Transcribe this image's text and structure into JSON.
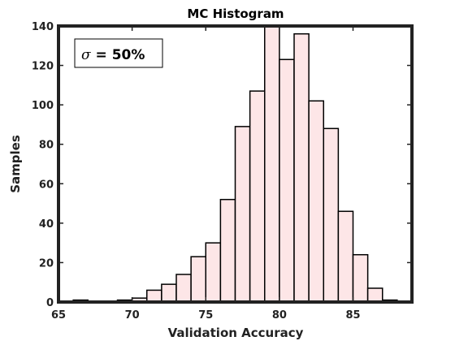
{
  "chart_data": {
    "type": "bar",
    "title": "MC Histogram",
    "xlabel": "Validation Accuracy",
    "ylabel": "Samples",
    "xlim": [
      65,
      89
    ],
    "ylim": [
      0,
      140
    ],
    "xticks": [
      65,
      70,
      75,
      80,
      85
    ],
    "yticks": [
      0,
      20,
      40,
      60,
      80,
      100,
      120,
      140
    ],
    "bin_width": 1,
    "bins": [
      {
        "x0": 66,
        "x1": 67,
        "value": 1
      },
      {
        "x0": 67,
        "x1": 68,
        "value": 0
      },
      {
        "x0": 68,
        "x1": 69,
        "value": 0
      },
      {
        "x0": 69,
        "x1": 70,
        "value": 1
      },
      {
        "x0": 70,
        "x1": 71,
        "value": 2
      },
      {
        "x0": 71,
        "x1": 72,
        "value": 6
      },
      {
        "x0": 72,
        "x1": 73,
        "value": 9
      },
      {
        "x0": 73,
        "x1": 74,
        "value": 14
      },
      {
        "x0": 74,
        "x1": 75,
        "value": 23
      },
      {
        "x0": 75,
        "x1": 76,
        "value": 30
      },
      {
        "x0": 76,
        "x1": 77,
        "value": 52
      },
      {
        "x0": 77,
        "x1": 78,
        "value": 89
      },
      {
        "x0": 78,
        "x1": 79,
        "value": 107
      },
      {
        "x0": 79,
        "x1": 80,
        "value": 140
      },
      {
        "x0": 80,
        "x1": 81,
        "value": 123
      },
      {
        "x0": 81,
        "x1": 82,
        "value": 136
      },
      {
        "x0": 82,
        "x1": 83,
        "value": 102
      },
      {
        "x0": 83,
        "x1": 84,
        "value": 88
      },
      {
        "x0": 84,
        "x1": 85,
        "value": 46
      },
      {
        "x0": 85,
        "x1": 86,
        "value": 24
      },
      {
        "x0": 86,
        "x1": 87,
        "value": 7
      },
      {
        "x0": 87,
        "x1": 88,
        "value": 1
      }
    ],
    "bar_color": "#fde6e7",
    "edge_color": "#000000",
    "grid": false,
    "annotation": {
      "symbol": "σ",
      "text": " = 50%",
      "placement": "top-left"
    }
  }
}
